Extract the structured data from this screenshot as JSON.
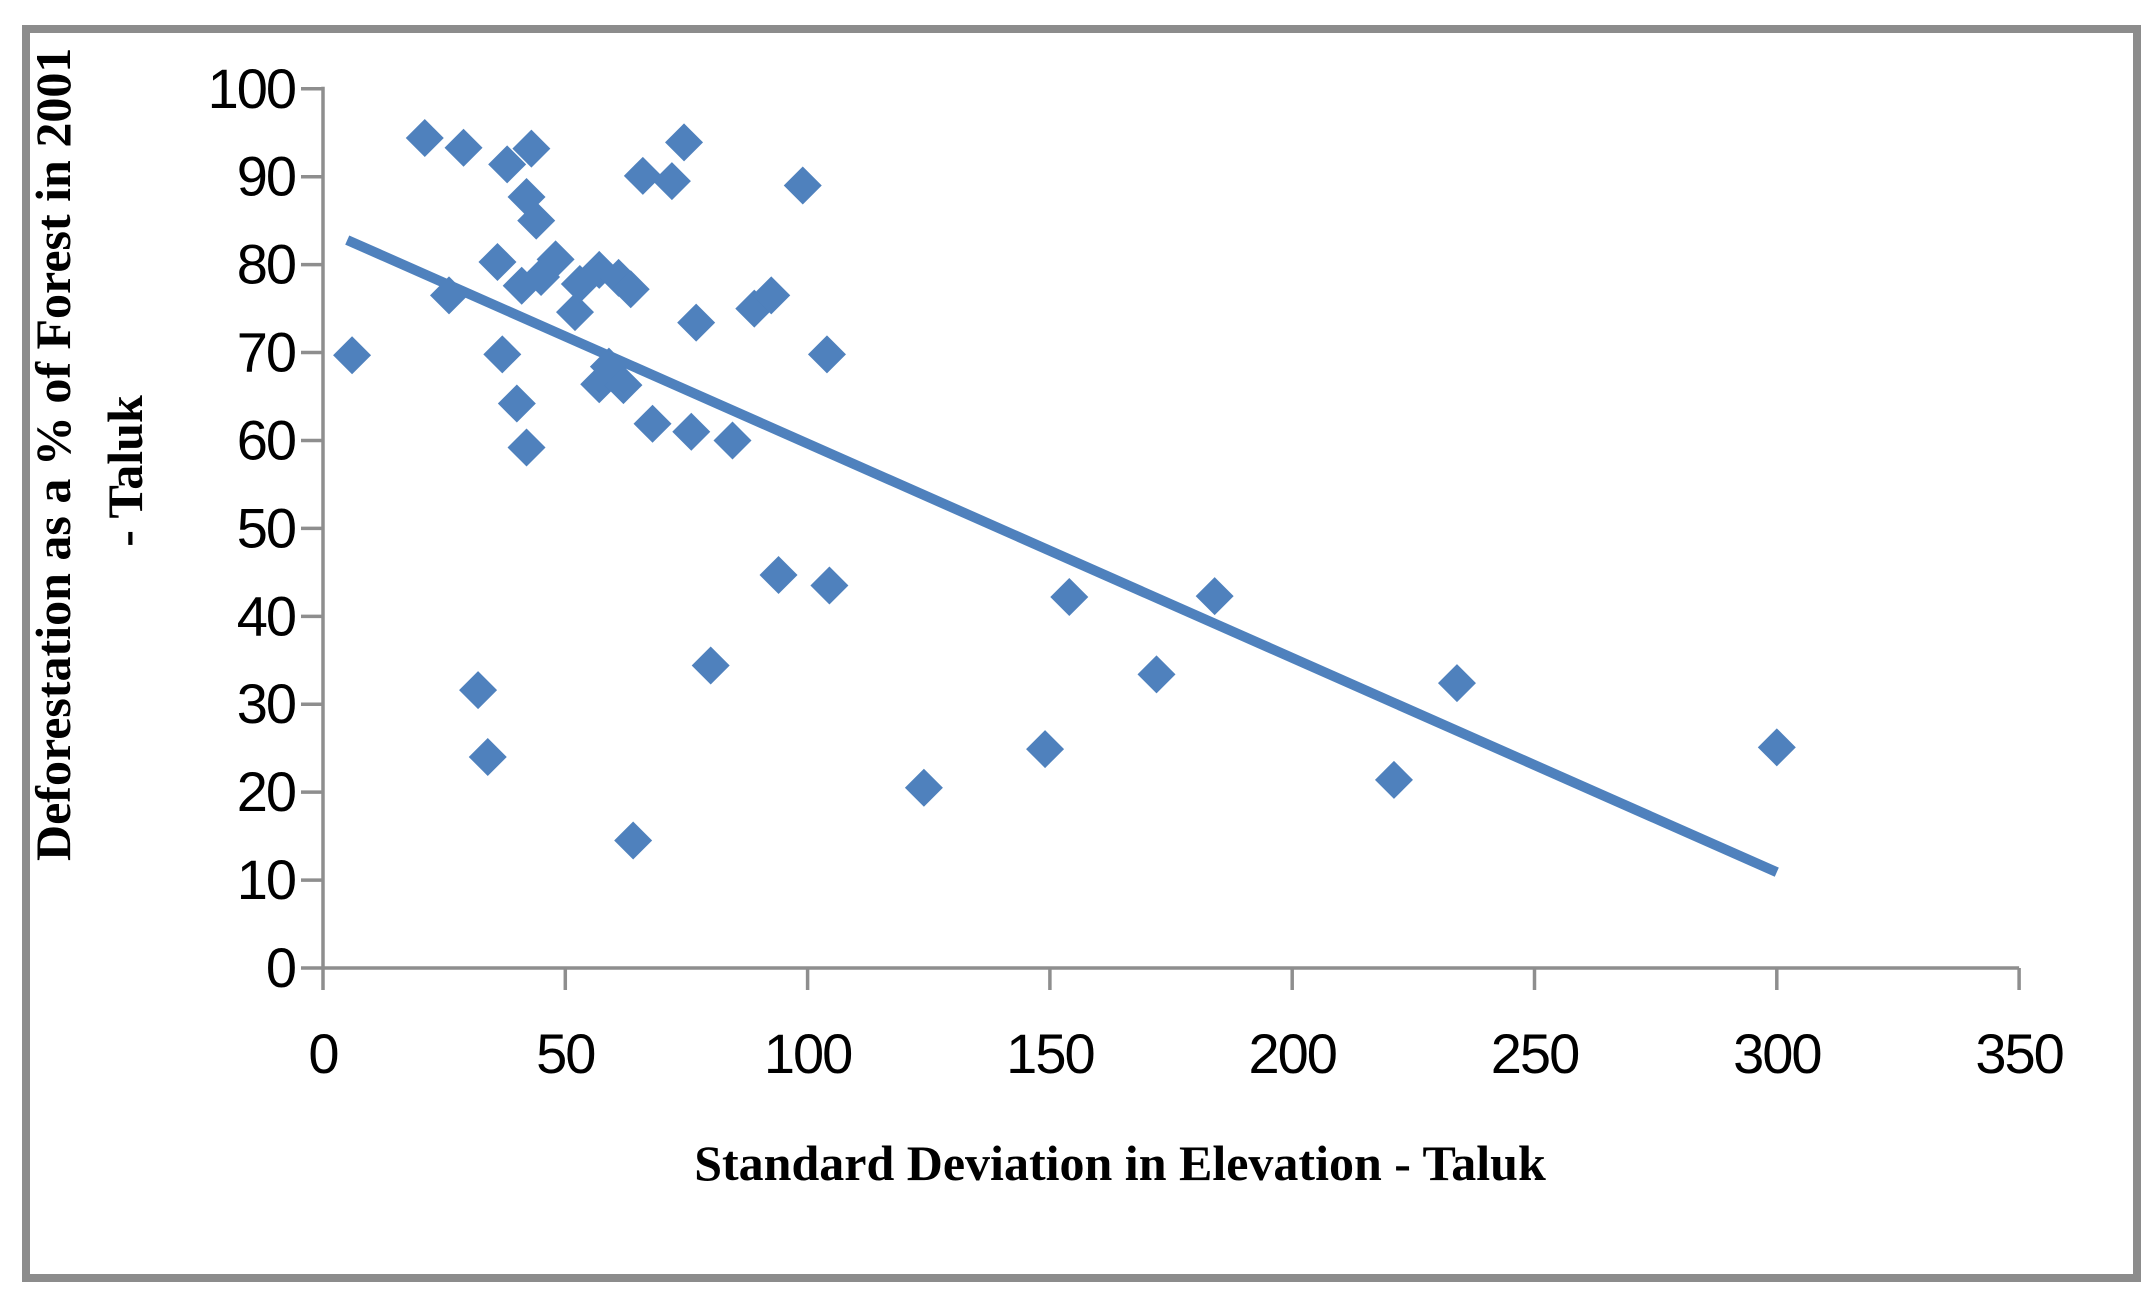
{
  "figure": {
    "background": "#ffffff",
    "border_color": "#8c8c8c"
  },
  "chart_data": {
    "type": "scatter",
    "title": "",
    "xlabel": "Standard Deviation in Elevation - Taluk",
    "ylabel_line1": "Deforestation as a % of Forest in 2001",
    "ylabel_line2": "- Taluk",
    "xlim": [
      0,
      350
    ],
    "ylim": [
      0,
      100
    ],
    "x_ticks": [
      0,
      50,
      100,
      150,
      200,
      250,
      300,
      350
    ],
    "y_ticks": [
      0,
      10,
      20,
      30,
      40,
      50,
      60,
      70,
      80,
      90,
      100
    ],
    "grid": false,
    "legend": false,
    "marker": "diamond",
    "marker_color": "#4f81bd",
    "axis_color": "#8e8e8e",
    "trendline": {
      "x1": 5,
      "y1": 82.8,
      "x2": 300,
      "y2": 10.9,
      "color": "#4f81bd"
    },
    "points": [
      [
        6,
        69.7
      ],
      [
        21,
        94.4
      ],
      [
        26,
        76.5
      ],
      [
        29,
        93.3
      ],
      [
        32,
        31.6
      ],
      [
        34,
        24.0
      ],
      [
        36,
        80.3
      ],
      [
        37,
        69.8
      ],
      [
        38,
        91.4
      ],
      [
        40,
        64.2
      ],
      [
        41,
        77.6
      ],
      [
        42,
        59.2
      ],
      [
        42,
        87.7
      ],
      [
        43,
        93.2
      ],
      [
        44,
        85.0
      ],
      [
        45,
        78.6
      ],
      [
        48,
        80.6
      ],
      [
        52,
        74.6
      ],
      [
        53,
        77.8
      ],
      [
        57,
        79.4
      ],
      [
        57,
        66.4
      ],
      [
        59,
        68.4
      ],
      [
        61,
        78.5
      ],
      [
        62,
        66.3
      ],
      [
        63.5,
        77.2
      ],
      [
        64,
        14.5
      ],
      [
        66,
        90.1
      ],
      [
        68,
        61.9
      ],
      [
        72,
        89.5
      ],
      [
        74.5,
        93.9
      ],
      [
        76,
        61.0
      ],
      [
        77,
        73.4
      ],
      [
        80,
        34.4
      ],
      [
        84.5,
        60.0
      ],
      [
        89,
        75.0
      ],
      [
        92.5,
        76.5
      ],
      [
        94,
        44.7
      ],
      [
        99,
        89.0
      ],
      [
        104,
        69.8
      ],
      [
        104.5,
        43.5
      ],
      [
        124,
        20.5
      ],
      [
        149,
        24.9
      ],
      [
        154,
        42.2
      ],
      [
        172,
        33.4
      ],
      [
        184,
        42.3
      ],
      [
        221,
        21.4
      ],
      [
        234,
        32.4
      ],
      [
        300,
        25.1
      ]
    ]
  }
}
